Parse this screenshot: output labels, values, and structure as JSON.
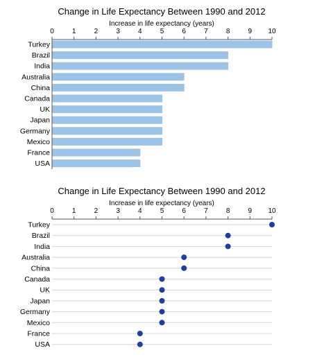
{
  "chart_data": [
    {
      "type": "bar",
      "title": "Change in Life Expectancy Between 1990 and 2012",
      "xlabel": "Increase in life expectancy (years)",
      "ylabel": "",
      "xlim": [
        0,
        10
      ],
      "ticks": [
        "0",
        "1",
        "2",
        "3",
        "4",
        "5",
        "6",
        "7",
        "8",
        "9",
        "10"
      ],
      "categories": [
        "Turkey",
        "Brazil",
        "India",
        "Australia",
        "China",
        "Canada",
        "UK",
        "Japan",
        "Germany",
        "Mexico",
        "France",
        "USA"
      ],
      "values": [
        10,
        8,
        8,
        6,
        6,
        5,
        5,
        5,
        5,
        5,
        4,
        4
      ],
      "orientation": "horizontal",
      "axis_position": "top",
      "grid": false,
      "color": "#9cc3e6"
    },
    {
      "type": "scatter",
      "title": "Change in Life Expectancy Between 1990 and 2012",
      "xlabel": "Increase in life expectancy (years)",
      "ylabel": "",
      "xlim": [
        0,
        10
      ],
      "ticks": [
        "0",
        "1",
        "2",
        "3",
        "4",
        "5",
        "6",
        "7",
        "8",
        "9",
        "10"
      ],
      "categories": [
        "Turkey",
        "Brazil",
        "India",
        "Australia",
        "China",
        "Canada",
        "UK",
        "Japan",
        "Germany",
        "Mexico",
        "France",
        "USA"
      ],
      "values": [
        10,
        8,
        8,
        6,
        6,
        5,
        5,
        5,
        5,
        5,
        4,
        4
      ],
      "style": "dot plot",
      "axis_position": "top",
      "grid": true,
      "color": "#1f3f9a",
      "grid_color": "#d4d4d4"
    }
  ]
}
